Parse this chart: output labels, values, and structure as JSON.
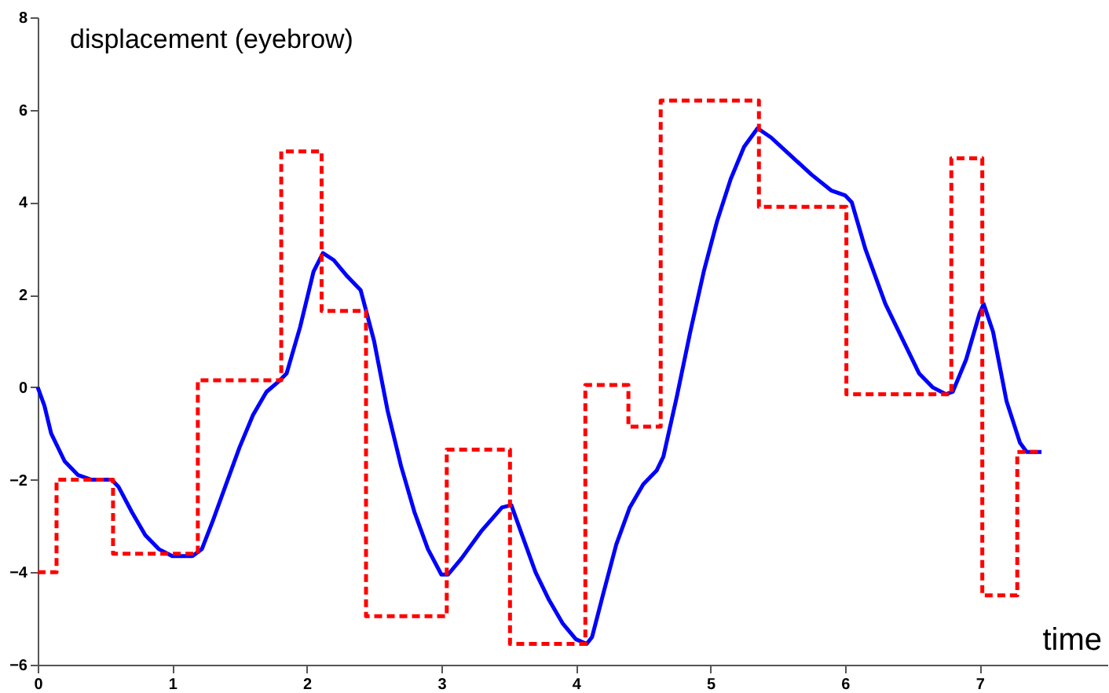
{
  "chart_data": {
    "type": "line",
    "ylabel": "displacement (eyebrow)",
    "xlabel": "time",
    "xlim": [
      0,
      7.95
    ],
    "ylim": [
      -6,
      8
    ],
    "xticks": [
      0,
      1,
      2,
      3,
      4,
      5,
      6,
      7
    ],
    "yticks": [
      -6,
      -4,
      -2,
      0,
      2,
      4,
      6,
      8
    ],
    "grid": false,
    "series": [
      {
        "color": "#0000ff",
        "line_style": "solid",
        "x": [
          0,
          0.05,
          0.1,
          0.2,
          0.3,
          0.4,
          0.55,
          0.6,
          0.7,
          0.8,
          0.9,
          1.0,
          1.15,
          1.22,
          1.3,
          1.4,
          1.5,
          1.6,
          1.7,
          1.8,
          1.85,
          1.95,
          2.05,
          2.12,
          2.2,
          2.3,
          2.4,
          2.5,
          2.6,
          2.7,
          2.8,
          2.9,
          3.0,
          3.05,
          3.15,
          3.3,
          3.45,
          3.52,
          3.6,
          3.7,
          3.8,
          3.9,
          4.0,
          4.08,
          4.12,
          4.2,
          4.3,
          4.4,
          4.5,
          4.6,
          4.65,
          4.75,
          4.85,
          4.95,
          5.05,
          5.15,
          5.25,
          5.35,
          5.45,
          5.6,
          5.75,
          5.9,
          6.0,
          6.05,
          6.15,
          6.3,
          6.45,
          6.55,
          6.65,
          6.75,
          6.8,
          6.9,
          7.0,
          7.03,
          7.1,
          7.2,
          7.3,
          7.35,
          7.46
        ],
        "values": [
          0,
          -0.4,
          -1.0,
          -1.6,
          -1.9,
          -2.0,
          -2.0,
          -2.15,
          -2.7,
          -3.2,
          -3.5,
          -3.65,
          -3.65,
          -3.5,
          -2.9,
          -2.1,
          -1.3,
          -0.6,
          -0.1,
          0.15,
          0.3,
          1.3,
          2.5,
          2.9,
          2.75,
          2.4,
          2.1,
          1.0,
          -0.5,
          -1.7,
          -2.7,
          -3.5,
          -4.05,
          -4.05,
          -3.7,
          -3.1,
          -2.6,
          -2.55,
          -3.2,
          -4.0,
          -4.6,
          -5.1,
          -5.45,
          -5.55,
          -5.4,
          -4.5,
          -3.4,
          -2.6,
          -2.1,
          -1.8,
          -1.5,
          -0.2,
          1.2,
          2.5,
          3.6,
          4.5,
          5.2,
          5.6,
          5.4,
          5.0,
          4.6,
          4.25,
          4.15,
          4.0,
          3.0,
          1.8,
          0.9,
          0.3,
          0.0,
          -0.15,
          -0.1,
          0.6,
          1.6,
          1.8,
          1.2,
          -0.3,
          -1.2,
          -1.4,
          -1.4
        ]
      },
      {
        "type": "step",
        "color": "#ff0000",
        "line_style": "dashed",
        "x": [
          0,
          0.14,
          0.56,
          1.19,
          1.81,
          2.11,
          2.44,
          3.04,
          3.51,
          4.07,
          4.39,
          4.63,
          5.36,
          6.01,
          6.79,
          7.02,
          7.28,
          7.46
        ],
        "values": [
          -4,
          -2,
          -3.6,
          0.15,
          5.1,
          1.65,
          -4.95,
          -1.35,
          -5.55,
          0.05,
          -0.85,
          6.2,
          3.9,
          -0.15,
          4.95,
          -4.5,
          -1.4,
          -1.4
        ]
      }
    ]
  }
}
